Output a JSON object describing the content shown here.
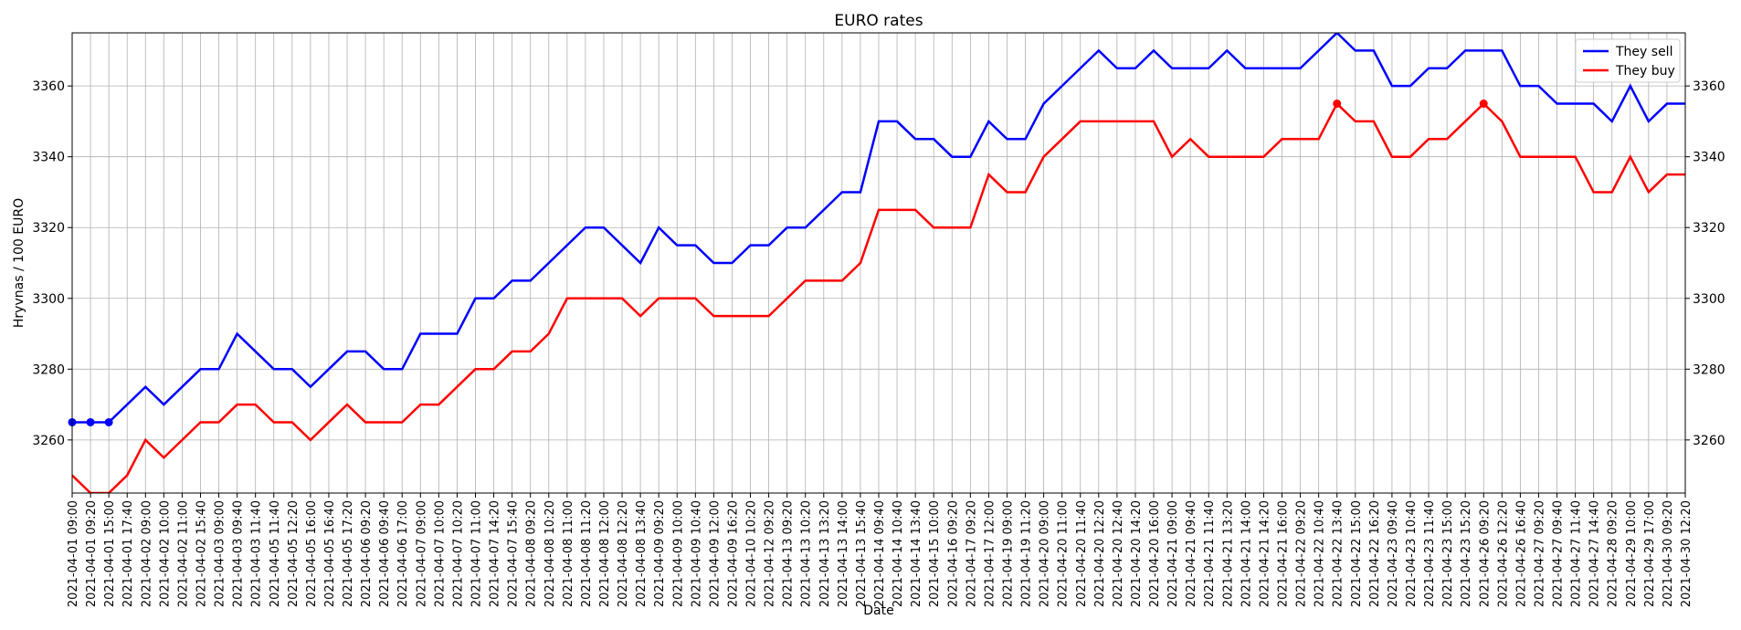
{
  "chart_data": {
    "type": "line",
    "title": "EURO rates",
    "xlabel": "Date",
    "ylabel": "Hryvnas / 100 EURO",
    "categories": [
      "2021-04-01 09:00",
      "2021-04-01 09:20",
      "2021-04-01 15:00",
      "2021-04-01 17:40",
      "2021-04-02 09:00",
      "2021-04-02 10:00",
      "2021-04-02 11:00",
      "2021-04-02 15:40",
      "2021-04-03 09:00",
      "2021-04-03 09:40",
      "2021-04-03 11:40",
      "2021-04-05 11:40",
      "2021-04-05 12:20",
      "2021-04-05 16:00",
      "2021-04-05 16:40",
      "2021-04-05 17:20",
      "2021-04-06 09:20",
      "2021-04-06 09:40",
      "2021-04-06 17:00",
      "2021-04-07 09:00",
      "2021-04-07 10:00",
      "2021-04-07 10:20",
      "2021-04-07 11:00",
      "2021-04-07 14:20",
      "2021-04-07 15:40",
      "2021-04-08 09:20",
      "2021-04-08 10:20",
      "2021-04-08 11:00",
      "2021-04-08 11:20",
      "2021-04-08 12:00",
      "2021-04-08 12:20",
      "2021-04-08 13:40",
      "2021-04-09 09:20",
      "2021-04-09 10:00",
      "2021-04-09 10:40",
      "2021-04-09 12:00",
      "2021-04-09 16:20",
      "2021-04-10 10:20",
      "2021-04-12 09:20",
      "2021-04-13 09:20",
      "2021-04-13 10:20",
      "2021-04-13 13:20",
      "2021-04-13 14:00",
      "2021-04-13 15:40",
      "2021-04-14 09:40",
      "2021-04-14 10:40",
      "2021-04-14 13:40",
      "2021-04-15 10:00",
      "2021-04-16 09:20",
      "2021-04-17 09:20",
      "2021-04-17 12:00",
      "2021-04-19 09:00",
      "2021-04-19 11:20",
      "2021-04-20 09:00",
      "2021-04-20 11:00",
      "2021-04-20 11:40",
      "2021-04-20 12:20",
      "2021-04-20 12:40",
      "2021-04-20 14:20",
      "2021-04-20 16:00",
      "2021-04-21 09:00",
      "2021-04-21 09:40",
      "2021-04-21 11:40",
      "2021-04-21 13:20",
      "2021-04-21 14:00",
      "2021-04-21 14:20",
      "2021-04-21 16:00",
      "2021-04-22 09:20",
      "2021-04-22 10:40",
      "2021-04-22 13:40",
      "2021-04-22 15:00",
      "2021-04-22 16:20",
      "2021-04-23 09:40",
      "2021-04-23 10:40",
      "2021-04-23 11:40",
      "2021-04-23 15:00",
      "2021-04-23 15:20",
      "2021-04-26 09:20",
      "2021-04-26 12:20",
      "2021-04-26 16:40",
      "2021-04-27 09:20",
      "2021-04-27 09:40",
      "2021-04-27 11:40",
      "2021-04-27 14:40",
      "2021-04-28 09:20",
      "2021-04-29 10:00",
      "2021-04-29 17:00",
      "2021-04-30 09:20",
      "2021-04-30 12:20"
    ],
    "series": [
      {
        "name": "They sell",
        "color": "#0000ff",
        "markers": [
          0,
          1,
          2
        ],
        "values": [
          3265,
          3265,
          3265,
          3270,
          3275,
          3270,
          3275,
          3280,
          3280,
          3290,
          3285,
          3280,
          3280,
          3275,
          3280,
          3285,
          3285,
          3280,
          3280,
          3290,
          3290,
          3290,
          3300,
          3300,
          3305,
          3305,
          3310,
          3315,
          3320,
          3320,
          3315,
          3310,
          3320,
          3315,
          3315,
          3310,
          3310,
          3315,
          3315,
          3320,
          3320,
          3325,
          3330,
          3330,
          3350,
          3350,
          3345,
          3345,
          3340,
          3340,
          3350,
          3345,
          3345,
          3355,
          3360,
          3365,
          3370,
          3365,
          3365,
          3370,
          3365,
          3365,
          3365,
          3370,
          3365,
          3365,
          3365,
          3365,
          3370,
          3375,
          3370,
          3370,
          3360,
          3360,
          3365,
          3365,
          3370,
          3370,
          3370,
          3360,
          3360,
          3355,
          3355,
          3355,
          3350,
          3360,
          3350,
          3355,
          3355
        ]
      },
      {
        "name": "They buy",
        "color": "#ff0000",
        "markers": [
          69,
          77
        ],
        "values": [
          3250,
          3245,
          3245,
          3250,
          3260,
          3255,
          3260,
          3265,
          3265,
          3270,
          3270,
          3265,
          3265,
          3260,
          3265,
          3270,
          3265,
          3265,
          3265,
          3270,
          3270,
          3275,
          3280,
          3280,
          3285,
          3285,
          3290,
          3300,
          3300,
          3300,
          3300,
          3295,
          3300,
          3300,
          3300,
          3295,
          3295,
          3295,
          3295,
          3300,
          3305,
          3305,
          3305,
          3310,
          3325,
          3325,
          3325,
          3320,
          3320,
          3320,
          3335,
          3330,
          3330,
          3340,
          3345,
          3350,
          3350,
          3350,
          3350,
          3350,
          3340,
          3345,
          3340,
          3340,
          3340,
          3340,
          3345,
          3345,
          3345,
          3355,
          3350,
          3350,
          3340,
          3340,
          3345,
          3345,
          3350,
          3355,
          3350,
          3340,
          3340,
          3340,
          3340,
          3330,
          3330,
          3340,
          3330,
          3335,
          3335
        ]
      }
    ],
    "ylim": [
      3245,
      3375
    ],
    "yticks": [
      3260,
      3280,
      3300,
      3320,
      3340,
      3360
    ],
    "grid": true,
    "legend": "upper right"
  }
}
